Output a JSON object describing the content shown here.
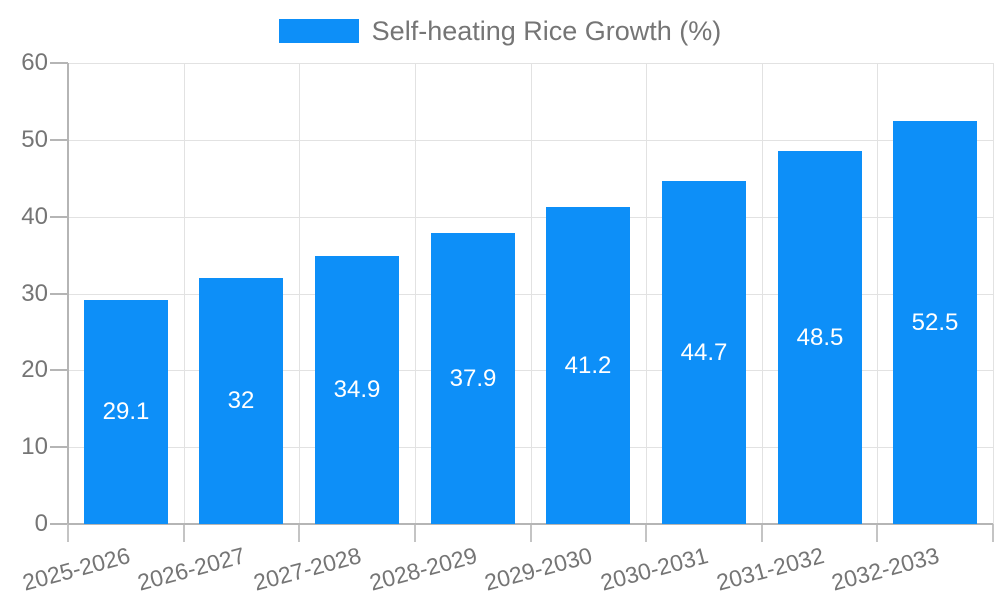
{
  "chart_data": {
    "type": "bar",
    "title": "Self-heating Rice Growth (%)",
    "categories": [
      "2025-2026",
      "2026-2027",
      "2027-2028",
      "2028-2029",
      "2029-2030",
      "2030-2031",
      "2031-2032",
      "2032-2033"
    ],
    "values": [
      29.1,
      32,
      34.9,
      37.9,
      41.2,
      44.7,
      48.5,
      52.5
    ],
    "value_labels": [
      "29.1",
      "32",
      "34.9",
      "37.9",
      "41.2",
      "44.7",
      "48.5",
      "52.5"
    ],
    "xlabel": "",
    "ylabel": "",
    "ylim": [
      0,
      60
    ],
    "yticks": [
      0,
      10,
      20,
      30,
      40,
      50,
      60
    ],
    "grid": "on",
    "legend_position": "top-center",
    "x_tick_label_rotation_deg": -15,
    "colors": {
      "bar": "#0D8FF8",
      "axis_label": "#757575",
      "value_label": "#ffffff",
      "axis_line": "#b5b5b5",
      "tick": "#c4c4c4",
      "gridline": "#e2e2e2",
      "background": "#ffffff"
    }
  }
}
